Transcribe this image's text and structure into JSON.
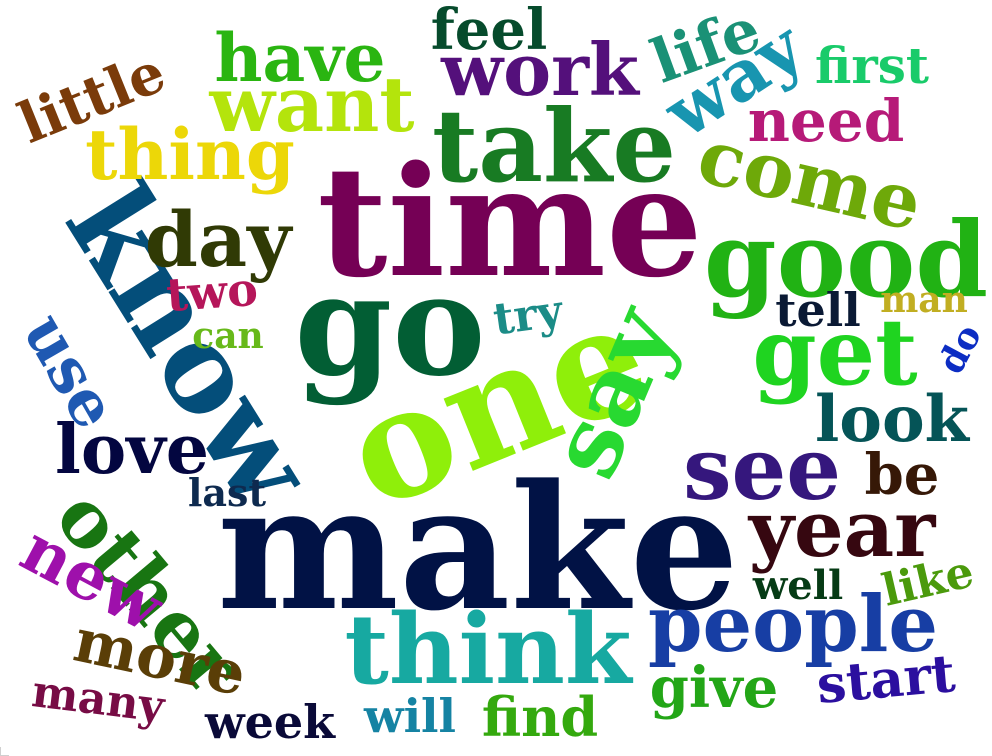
{
  "words": [
    {
      "text": "make",
      "color": "#011245"
    },
    {
      "text": "time",
      "color": "#750055"
    },
    {
      "text": "one",
      "color": "#8fef0a"
    },
    {
      "text": "go",
      "color": "#025e34"
    },
    {
      "text": "know",
      "color": "#044e7a"
    },
    {
      "text": "good",
      "color": "#21b214"
    },
    {
      "text": "take",
      "color": "#187b23"
    },
    {
      "text": "think",
      "color": "#17a9a1"
    },
    {
      "text": "say",
      "color": "#28d931"
    },
    {
      "text": "get",
      "color": "#1fd420"
    },
    {
      "text": "see",
      "color": "#35177d"
    },
    {
      "text": "year",
      "color": "#360710"
    },
    {
      "text": "people",
      "color": "#173ea4"
    },
    {
      "text": "other",
      "color": "#187512"
    },
    {
      "text": "come",
      "color": "#6ea909"
    },
    {
      "text": "day",
      "color": "#303a05"
    },
    {
      "text": "want",
      "color": "#b4e40c"
    },
    {
      "text": "work",
      "color": "#54107b"
    },
    {
      "text": "thing",
      "color": "#ecd708"
    },
    {
      "text": "way",
      "color": "#1895b0"
    },
    {
      "text": "new",
      "color": "#9e10ab"
    },
    {
      "text": "love",
      "color": "#030640"
    },
    {
      "text": "have",
      "color": "#2ab511"
    },
    {
      "text": "use",
      "color": "#1f59b2"
    },
    {
      "text": "look",
      "color": "#055457"
    },
    {
      "text": "more",
      "color": "#5a3e07"
    },
    {
      "text": "little",
      "color": "#7a3b0a"
    },
    {
      "text": "feel",
      "color": "#064b2c"
    },
    {
      "text": "life",
      "color": "#1a9176"
    },
    {
      "text": "need",
      "color": "#b61a78"
    },
    {
      "text": "give",
      "color": "#23a617"
    },
    {
      "text": "be",
      "color": "#361807"
    },
    {
      "text": "find",
      "color": "#34a90e"
    },
    {
      "text": "start",
      "color": "#2b0f9f"
    },
    {
      "text": "first",
      "color": "#19cb6a"
    },
    {
      "text": "many",
      "color": "#770c45"
    },
    {
      "text": "will",
      "color": "#1583a3"
    },
    {
      "text": "week",
      "color": "#0a0a38"
    },
    {
      "text": "tell",
      "color": "#0a1934"
    },
    {
      "text": "two",
      "color": "#b5165a"
    },
    {
      "text": "try",
      "color": "#1b8c87"
    },
    {
      "text": "like",
      "color": "#4b9a0c"
    },
    {
      "text": "well",
      "color": "#063b15"
    },
    {
      "text": "last",
      "color": "#0e2a4f"
    },
    {
      "text": "can",
      "color": "#67b91a"
    },
    {
      "text": "man",
      "color": "#c1ae22"
    },
    {
      "text": "do",
      "color": "#0c2dc3"
    }
  ]
}
